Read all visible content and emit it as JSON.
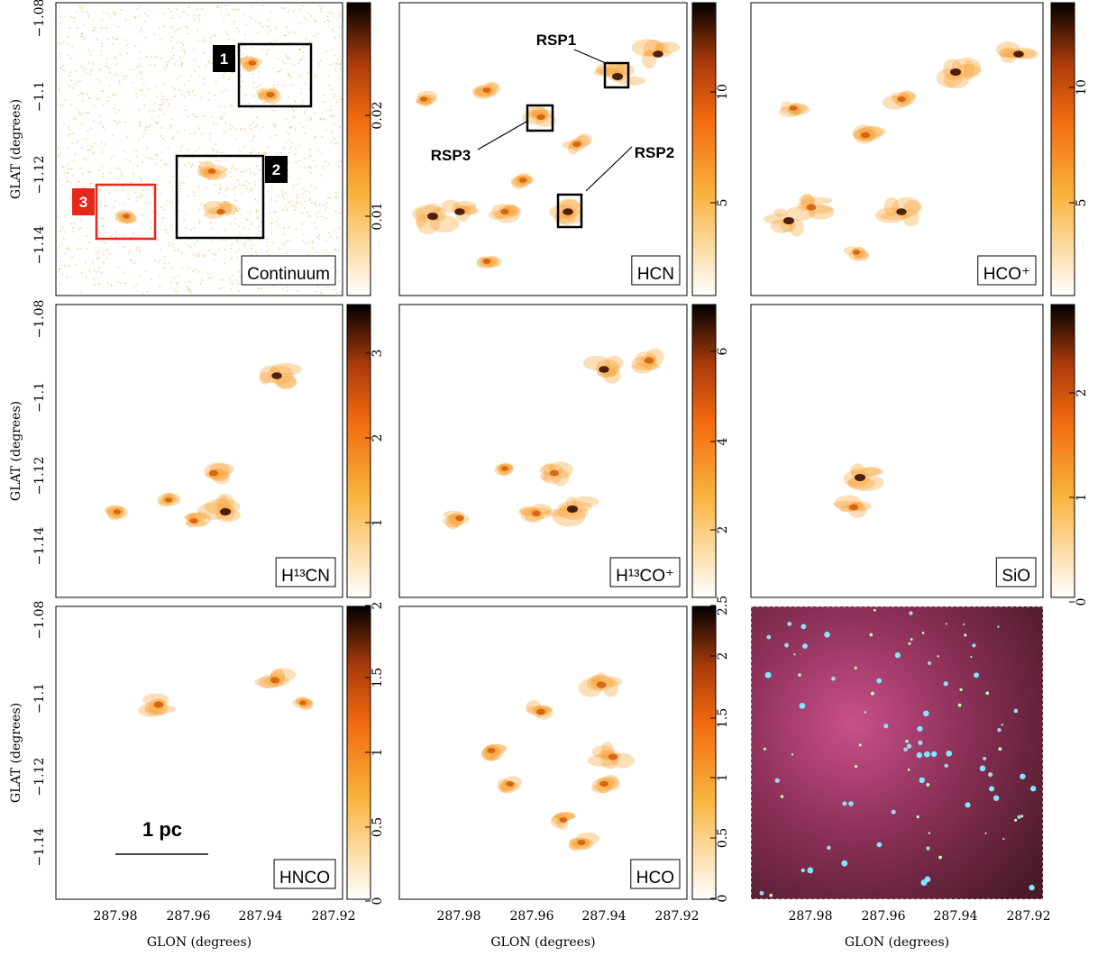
{
  "axes": {
    "y_title": "GLAT (degrees)",
    "x_title": "GLON (degrees)",
    "y_ticks": [
      "−1.08",
      "−1.1",
      "−1.12",
      "−1.14"
    ],
    "x_ticks": [
      "287.98",
      "287.96",
      "287.94",
      "287.92"
    ]
  },
  "panels": [
    {
      "label": "Continuum",
      "colorbar_ticks": [
        "0.01",
        "0.02"
      ]
    },
    {
      "label": "HCN",
      "colorbar_ticks": [
        "5",
        "10"
      ]
    },
    {
      "label": "HCO⁺",
      "colorbar_ticks": [
        "5",
        "10"
      ]
    },
    {
      "label": "H¹³CN",
      "colorbar_ticks": [
        "1",
        "2",
        "3"
      ]
    },
    {
      "label": "H¹³CO⁺",
      "colorbar_ticks": [
        "2",
        "4",
        "6"
      ]
    },
    {
      "label": "SiO",
      "colorbar_ticks": [
        "0",
        "1",
        "2"
      ]
    },
    {
      "label": "HNCO",
      "colorbar_ticks": [
        "0",
        "0.5",
        "1",
        "1.5",
        "2"
      ]
    },
    {
      "label": "HCO",
      "colorbar_ticks": [
        "0",
        "0.5",
        "1",
        "1.5",
        "2",
        "2.5"
      ]
    }
  ],
  "annotations": {
    "boxes": [
      "1",
      "2",
      "3"
    ],
    "sources": [
      "RSP1",
      "RSP2",
      "RSP3"
    ],
    "scale_bar": "1 pc"
  }
}
